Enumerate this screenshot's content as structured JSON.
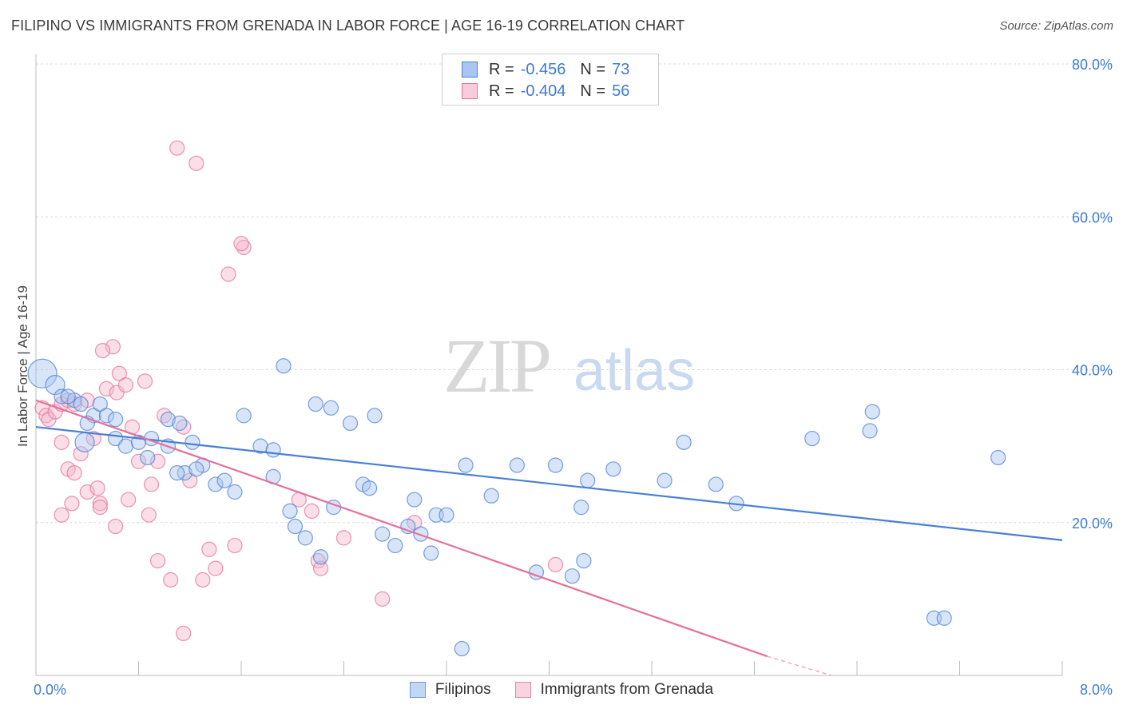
{
  "title": "FILIPINO VS IMMIGRANTS FROM GRENADA IN LABOR FORCE | AGE 16-19 CORRELATION CHART",
  "source": "Source: ZipAtlas.com",
  "watermark": {
    "zip": "ZIP",
    "atlas": "atlas"
  },
  "legend": {
    "r_label": "R =",
    "n_label": "N =",
    "rows": [
      {
        "r": "-0.456",
        "n": "73"
      },
      {
        "r": "-0.404",
        "n": "56"
      }
    ]
  },
  "bottom_legend": [
    "Filipinos",
    "Immigrants from Grenada"
  ],
  "colors": {
    "blue": "#4a7fd6",
    "pink": "#e5709a",
    "blue_fill": "#a9c6f0",
    "pink_fill": "#f4b8cc",
    "axis_text": "#3f7bd0"
  },
  "chart_data": {
    "type": "scatter",
    "title": "FILIPINO VS IMMIGRANTS FROM GRENADA IN LABOR FORCE | AGE 16-19 CORRELATION CHART",
    "xlabel": "",
    "ylabel": "In Labor Force | Age 16-19",
    "xlim": [
      0,
      8
    ],
    "ylim": [
      0,
      80
    ],
    "x_tick_labels": [
      "0.0%",
      "8.0%"
    ],
    "y_ticks": [
      20,
      40,
      60,
      80
    ],
    "y_tick_labels": [
      "20.0%",
      "40.0%",
      "60.0%",
      "80.0%"
    ],
    "grid": true,
    "legend_position": "top-center",
    "series": [
      {
        "name": "Filipinos",
        "r": -0.456,
        "n": 73,
        "trend": [
          [
            0,
            32.5
          ],
          [
            8,
            17.7
          ]
        ],
        "points": [
          [
            0.05,
            39.5
          ],
          [
            0.15,
            38
          ],
          [
            0.2,
            36.5
          ],
          [
            0.3,
            36
          ],
          [
            0.35,
            35.5
          ],
          [
            0.45,
            34
          ],
          [
            0.4,
            33
          ],
          [
            0.5,
            35.5
          ],
          [
            0.55,
            34
          ],
          [
            0.62,
            33.5
          ],
          [
            0.38,
            30.5
          ],
          [
            0.62,
            31
          ],
          [
            0.7,
            30
          ],
          [
            0.8,
            30.5
          ],
          [
            0.87,
            28.5
          ],
          [
            0.9,
            31
          ],
          [
            1.03,
            33.5
          ],
          [
            1.03,
            30
          ],
          [
            1.12,
            33
          ],
          [
            1.22,
            30.5
          ],
          [
            1.16,
            26.5
          ],
          [
            1.3,
            27.5
          ],
          [
            1.25,
            27
          ],
          [
            1.4,
            25
          ],
          [
            1.47,
            25.5
          ],
          [
            1.55,
            24
          ],
          [
            1.62,
            34
          ],
          [
            1.75,
            30
          ],
          [
            1.85,
            29.5
          ],
          [
            1.85,
            26
          ],
          [
            1.93,
            40.5
          ],
          [
            1.98,
            21.5
          ],
          [
            2.02,
            19.5
          ],
          [
            2.1,
            18
          ],
          [
            2.18,
            35.5
          ],
          [
            2.22,
            15.5
          ],
          [
            2.3,
            35
          ],
          [
            2.32,
            22
          ],
          [
            2.45,
            33
          ],
          [
            2.55,
            25
          ],
          [
            2.6,
            24.5
          ],
          [
            2.64,
            34
          ],
          [
            2.7,
            18.5
          ],
          [
            2.8,
            17
          ],
          [
            2.9,
            19.5
          ],
          [
            2.95,
            23
          ],
          [
            3.0,
            18.5
          ],
          [
            3.08,
            16
          ],
          [
            3.12,
            21
          ],
          [
            3.2,
            21
          ],
          [
            3.32,
            3.5
          ],
          [
            3.35,
            27.5
          ],
          [
            3.55,
            23.5
          ],
          [
            3.75,
            27.5
          ],
          [
            3.9,
            13.5
          ],
          [
            4.05,
            27.5
          ],
          [
            4.18,
            13
          ],
          [
            4.25,
            22
          ],
          [
            4.27,
            15
          ],
          [
            4.3,
            25.5
          ],
          [
            4.5,
            27
          ],
          [
            4.9,
            25.5
          ],
          [
            5.05,
            30.5
          ],
          [
            5.3,
            25
          ],
          [
            5.46,
            22.5
          ],
          [
            6.05,
            31
          ],
          [
            6.5,
            32
          ],
          [
            6.52,
            34.5
          ],
          [
            7.0,
            7.5
          ],
          [
            7.08,
            7.5
          ],
          [
            7.5,
            28.5
          ],
          [
            0.25,
            36.5
          ],
          [
            1.1,
            26.5
          ]
        ]
      },
      {
        "name": "Immigrants from Grenada",
        "r": -0.404,
        "n": 56,
        "trend": [
          [
            0,
            36
          ],
          [
            5.7,
            2.5
          ]
        ],
        "trend_dashed_to": [
          6.2,
          0
        ],
        "points": [
          [
            0.05,
            35
          ],
          [
            0.08,
            34
          ],
          [
            0.1,
            33.5
          ],
          [
            0.15,
            34.5
          ],
          [
            0.2,
            35.5
          ],
          [
            0.25,
            36
          ],
          [
            0.3,
            35.5
          ],
          [
            0.2,
            30.5
          ],
          [
            0.25,
            27
          ],
          [
            0.3,
            26.5
          ],
          [
            0.35,
            29
          ],
          [
            0.4,
            24
          ],
          [
            0.45,
            31
          ],
          [
            0.48,
            24.5
          ],
          [
            0.5,
            22.5
          ],
          [
            0.55,
            37.5
          ],
          [
            0.6,
            43
          ],
          [
            0.52,
            42.5
          ],
          [
            0.63,
            37
          ],
          [
            0.65,
            39.5
          ],
          [
            0.7,
            38
          ],
          [
            0.75,
            32.5
          ],
          [
            0.8,
            28
          ],
          [
            0.85,
            38.5
          ],
          [
            0.88,
            21
          ],
          [
            0.9,
            25
          ],
          [
            0.95,
            15
          ],
          [
            1.0,
            34
          ],
          [
            1.05,
            12.5
          ],
          [
            1.1,
            69
          ],
          [
            1.15,
            32.5
          ],
          [
            1.2,
            25.5
          ],
          [
            1.25,
            67
          ],
          [
            1.3,
            12.5
          ],
          [
            1.35,
            16.5
          ],
          [
            1.4,
            14
          ],
          [
            1.55,
            17
          ],
          [
            1.62,
            56
          ],
          [
            1.5,
            52.5
          ],
          [
            1.6,
            56.5
          ],
          [
            0.2,
            21
          ],
          [
            0.28,
            22.5
          ],
          [
            0.62,
            19.5
          ],
          [
            0.72,
            23
          ],
          [
            1.15,
            5.5
          ],
          [
            2.05,
            23
          ],
          [
            2.15,
            21.5
          ],
          [
            2.2,
            15
          ],
          [
            2.22,
            14
          ],
          [
            2.4,
            18
          ],
          [
            2.7,
            10
          ],
          [
            2.95,
            20
          ],
          [
            4.05,
            14.5
          ],
          [
            0.95,
            28
          ],
          [
            0.5,
            22
          ],
          [
            0.4,
            36
          ]
        ]
      }
    ]
  }
}
